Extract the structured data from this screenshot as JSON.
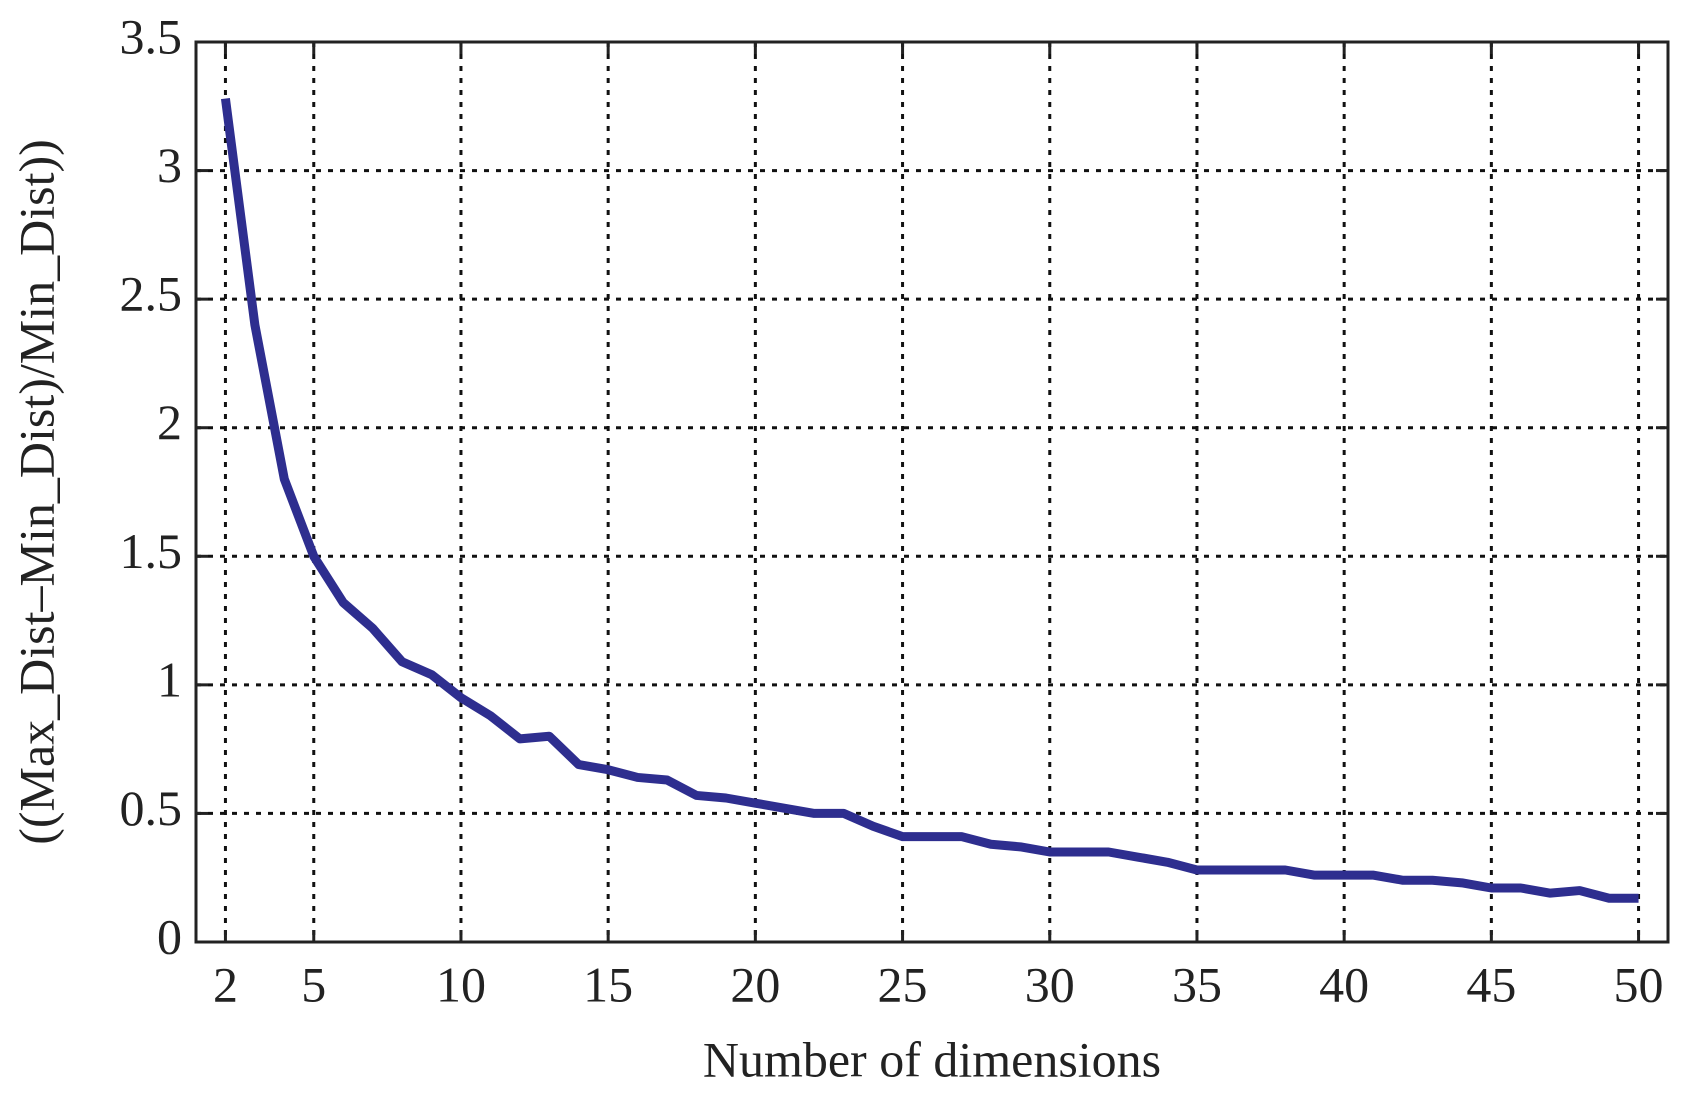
{
  "chart_data": {
    "type": "line",
    "x_label": "Number of dimensions",
    "y_label": "((Max_Dist–Min_Dist)/Min_Dist))",
    "x": [
      2,
      3,
      4,
      5,
      6,
      7,
      8,
      9,
      10,
      11,
      12,
      13,
      14,
      15,
      16,
      17,
      18,
      19,
      20,
      21,
      22,
      23,
      24,
      25,
      26,
      27,
      28,
      29,
      30,
      31,
      32,
      33,
      34,
      35,
      36,
      37,
      38,
      39,
      40,
      41,
      42,
      43,
      44,
      45,
      46,
      47,
      48,
      49,
      50
    ],
    "series": [
      {
        "color": "#2e2e8f",
        "values": [
          3.28,
          2.4,
          1.8,
          1.5,
          1.32,
          1.22,
          1.09,
          1.04,
          0.95,
          0.88,
          0.79,
          0.8,
          0.69,
          0.67,
          0.64,
          0.63,
          0.57,
          0.56,
          0.54,
          0.52,
          0.5,
          0.5,
          0.45,
          0.41,
          0.41,
          0.41,
          0.38,
          0.37,
          0.35,
          0.35,
          0.35,
          0.33,
          0.31,
          0.28,
          0.28,
          0.28,
          0.28,
          0.26,
          0.26,
          0.26,
          0.24,
          0.24,
          0.23,
          0.21,
          0.21,
          0.19,
          0.2,
          0.17,
          0.17
        ]
      }
    ],
    "xlim": [
      1,
      51
    ],
    "ylim": [
      0,
      3.5
    ],
    "xticks": [
      2,
      5,
      10,
      15,
      20,
      25,
      30,
      35,
      40,
      45,
      50
    ],
    "yticks": [
      0,
      0.5,
      1,
      1.5,
      2,
      2.5,
      3,
      3.5
    ],
    "grid": true
  }
}
